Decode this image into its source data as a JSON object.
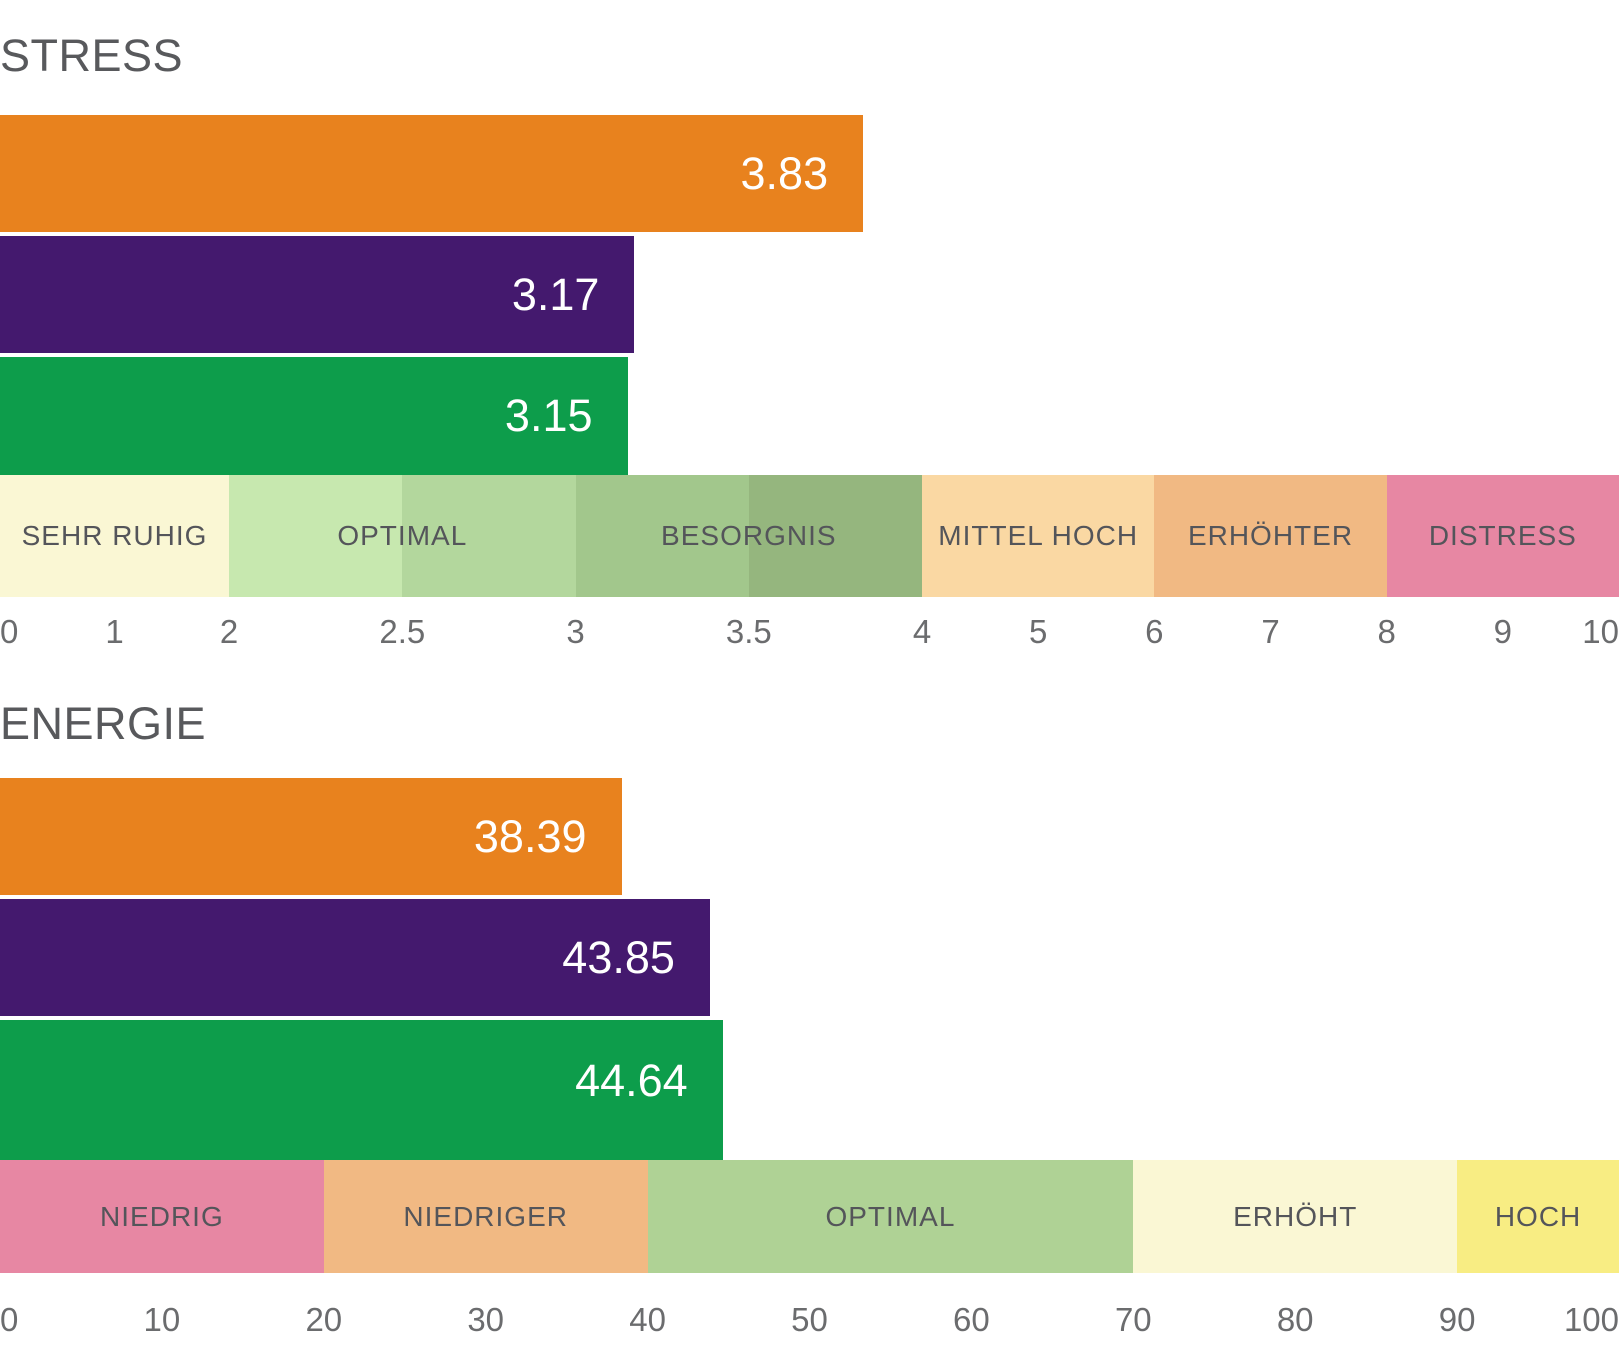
{
  "page": {
    "background": "#FFFFFF"
  },
  "colors": {
    "bar_orange": "#E8821E",
    "bar_purple": "#44196E",
    "bar_green": "#0D9D4B",
    "zone_pale_yellow": "#FAF7D4",
    "zone_green_1": "#C7E8AF",
    "zone_green_2": "#B3D79D",
    "zone_green_3": "#A2C78C",
    "zone_green_4": "#95B67E",
    "zone_peach_light": "#FAD8A3",
    "zone_peach_dark": "#F1B983",
    "zone_pink": "#E787A3",
    "zone_optimal_green": "#AFD295",
    "zone_bright_yellow": "#F8ED83",
    "title_gray": "#58595C",
    "zone_label_gray": "#54555A",
    "tick_gray": "#6B6C6E",
    "bar_value_white": "#FFFFFF"
  },
  "chart_data": [
    {
      "type": "bar",
      "orientation": "horizontal",
      "title": "STRESS",
      "axis": {
        "min": 0,
        "max": 10,
        "breakpoints": [
          {
            "v": 0,
            "p": 0
          },
          {
            "v": 2,
            "p": 14.15
          },
          {
            "v": 4,
            "p": 56.95
          },
          {
            "v": 10,
            "p": 100
          }
        ],
        "ticks": [
          {
            "v": 0,
            "label": "0"
          },
          {
            "v": 1,
            "label": "1"
          },
          {
            "v": 2,
            "label": "2"
          },
          {
            "v": 2.5,
            "label": "2.5"
          },
          {
            "v": 3,
            "label": "3"
          },
          {
            "v": 3.5,
            "label": "3.5"
          },
          {
            "v": 4,
            "label": "4"
          },
          {
            "v": 5,
            "label": "5"
          },
          {
            "v": 6,
            "label": "6"
          },
          {
            "v": 7,
            "label": "7"
          },
          {
            "v": 8,
            "label": "8"
          },
          {
            "v": 9,
            "label": "9"
          },
          {
            "v": 10,
            "label": "10"
          }
        ]
      },
      "series": [
        {
          "name": "series-orange",
          "value": 3.83,
          "label": "3.83",
          "color": "#E8821E"
        },
        {
          "name": "series-purple",
          "value": 3.17,
          "label": "3.17",
          "color": "#44196E"
        },
        {
          "name": "series-green",
          "value": 3.15,
          "label": "3.15",
          "color": "#0D9D4B"
        }
      ],
      "zones": {
        "cells": [
          {
            "from": 0,
            "to": 2,
            "color": "#FAF7D4"
          },
          {
            "from": 2,
            "to": 2.5,
            "color": "#C7E8AF"
          },
          {
            "from": 2.5,
            "to": 3,
            "color": "#B3D79D"
          },
          {
            "from": 3,
            "to": 3.5,
            "color": "#A2C78C"
          },
          {
            "from": 3.5,
            "to": 4,
            "color": "#95B67E"
          },
          {
            "from": 4,
            "to": 6,
            "color": "#FAD8A3"
          },
          {
            "from": 6,
            "to": 8,
            "color": "#F1B983"
          },
          {
            "from": 8,
            "to": 10,
            "color": "#E787A3"
          }
        ],
        "labels": [
          {
            "text": "SEHR RUHIG",
            "at": 1
          },
          {
            "text": "OPTIMAL",
            "at": 2.5
          },
          {
            "text": "BESORGNIS",
            "at": 3.5
          },
          {
            "text": "MITTEL HOCH",
            "at": 5
          },
          {
            "text": "ERHÖHTER",
            "at": 7
          },
          {
            "text": "DISTRESS",
            "at": 9
          }
        ]
      }
    },
    {
      "type": "bar",
      "orientation": "horizontal",
      "title": "ENERGIE",
      "axis": {
        "min": 0,
        "max": 100,
        "breakpoints": [
          {
            "v": 0,
            "p": 0
          },
          {
            "v": 100,
            "p": 100
          }
        ],
        "ticks": [
          {
            "v": 0,
            "label": "0"
          },
          {
            "v": 10,
            "label": "10"
          },
          {
            "v": 20,
            "label": "20"
          },
          {
            "v": 30,
            "label": "30"
          },
          {
            "v": 40,
            "label": "40"
          },
          {
            "v": 50,
            "label": "50"
          },
          {
            "v": 60,
            "label": "60"
          },
          {
            "v": 70,
            "label": "70"
          },
          {
            "v": 80,
            "label": "80"
          },
          {
            "v": 90,
            "label": "90"
          },
          {
            "v": 100,
            "label": "100"
          }
        ]
      },
      "series": [
        {
          "name": "series-orange",
          "value": 38.39,
          "label": "38.39",
          "color": "#E8821E"
        },
        {
          "name": "series-purple",
          "value": 43.85,
          "label": "43.85",
          "color": "#44196E"
        },
        {
          "name": "series-green",
          "value": 44.64,
          "label": "44.64",
          "color": "#0D9D4B"
        }
      ],
      "zones": {
        "cells": [
          {
            "from": 0,
            "to": 20,
            "color": "#E787A3"
          },
          {
            "from": 20,
            "to": 40,
            "color": "#F1B983"
          },
          {
            "from": 40,
            "to": 70,
            "color": "#AFD295"
          },
          {
            "from": 70,
            "to": 90,
            "color": "#FAF7D4"
          },
          {
            "from": 90,
            "to": 100,
            "color": "#F8ED83"
          }
        ],
        "labels": [
          {
            "text": "NIEDRIG",
            "at": 10
          },
          {
            "text": "NIEDRIGER",
            "at": 30
          },
          {
            "text": "OPTIMAL",
            "at": 55
          },
          {
            "text": "ERHÖHT",
            "at": 80
          },
          {
            "text": "HOCH",
            "at": 95
          }
        ]
      }
    }
  ]
}
